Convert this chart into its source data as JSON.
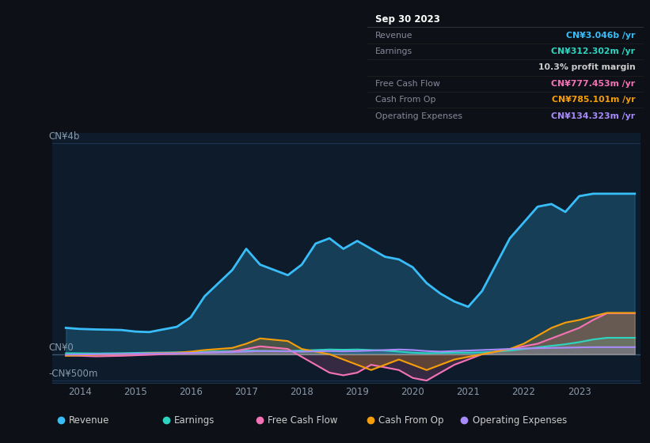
{
  "bg_color": "#0d1117",
  "plot_bg_color": "#0d1b2a",
  "tooltip_bg": "#000000",
  "ylabel_top": "CN¥4b",
  "ylabel_zero": "CN¥0",
  "ylabel_neg": "-CN¥500m",
  "ylim": [
    -550000000,
    4200000000
  ],
  "tooltip": {
    "date": "Sep 30 2023",
    "rows": [
      {
        "label": "Revenue",
        "value": "CN¥3.046b /yr",
        "value_color": "#38bdf8"
      },
      {
        "label": "Earnings",
        "value": "CN¥312.302m /yr",
        "value_color": "#2dd4bf"
      },
      {
        "label": "",
        "value": "10.3% profit margin",
        "value_color": "#cccccc"
      },
      {
        "label": "Free Cash Flow",
        "value": "CN¥777.453m /yr",
        "value_color": "#f472b6"
      },
      {
        "label": "Cash From Op",
        "value": "CN¥785.101m /yr",
        "value_color": "#f59e0b"
      },
      {
        "label": "Operating Expenses",
        "value": "CN¥134.323m /yr",
        "value_color": "#a78bfa"
      }
    ]
  },
  "legend": [
    {
      "label": "Revenue",
      "color": "#38bdf8"
    },
    {
      "label": "Earnings",
      "color": "#2dd4bf"
    },
    {
      "label": "Free Cash Flow",
      "color": "#f472b6"
    },
    {
      "label": "Cash From Op",
      "color": "#f59e0b"
    },
    {
      "label": "Operating Expenses",
      "color": "#a78bfa"
    }
  ],
  "x_years": [
    2013.75,
    2014.0,
    2014.3,
    2014.75,
    2015.0,
    2015.25,
    2015.75,
    2016.0,
    2016.25,
    2016.75,
    2017.0,
    2017.25,
    2017.75,
    2018.0,
    2018.25,
    2018.5,
    2018.75,
    2019.0,
    2019.25,
    2019.5,
    2019.75,
    2020.0,
    2020.25,
    2020.5,
    2020.75,
    2021.0,
    2021.25,
    2021.5,
    2021.75,
    2022.0,
    2022.25,
    2022.5,
    2022.75,
    2023.0,
    2023.25,
    2023.5,
    2023.75,
    2024.0
  ],
  "revenue": [
    500,
    480,
    470,
    460,
    430,
    420,
    520,
    700,
    1100,
    1600,
    2000,
    1700,
    1500,
    1700,
    2100,
    2200,
    2000,
    2150,
    2000,
    1850,
    1800,
    1650,
    1350,
    1150,
    1000,
    900,
    1200,
    1700,
    2200,
    2500,
    2800,
    2850,
    2700,
    3000,
    3046,
    3046,
    3046,
    3046
  ],
  "earnings": [
    20,
    18,
    15,
    20,
    25,
    30,
    35,
    40,
    50,
    60,
    70,
    65,
    60,
    70,
    80,
    90,
    85,
    90,
    80,
    70,
    50,
    30,
    20,
    25,
    30,
    30,
    35,
    50,
    70,
    100,
    130,
    160,
    190,
    230,
    280,
    312,
    312,
    312
  ],
  "free_cash_flow": [
    -20,
    -30,
    -40,
    -30,
    -20,
    -10,
    10,
    20,
    30,
    50,
    100,
    150,
    100,
    -50,
    -200,
    -350,
    -400,
    -350,
    -200,
    -250,
    -300,
    -450,
    -500,
    -350,
    -200,
    -100,
    0,
    50,
    100,
    150,
    200,
    300,
    400,
    500,
    650,
    777,
    777,
    777
  ],
  "cash_from_op": [
    -30,
    -20,
    -10,
    0,
    10,
    20,
    30,
    50,
    80,
    120,
    200,
    300,
    250,
    100,
    50,
    0,
    -100,
    -200,
    -300,
    -200,
    -100,
    -200,
    -300,
    -200,
    -100,
    -50,
    0,
    50,
    100,
    200,
    350,
    500,
    600,
    650,
    720,
    785,
    785,
    785
  ],
  "op_expenses": [
    -10,
    -5,
    0,
    5,
    10,
    15,
    20,
    25,
    30,
    40,
    50,
    60,
    55,
    50,
    55,
    60,
    55,
    60,
    70,
    80,
    90,
    80,
    60,
    50,
    60,
    70,
    80,
    90,
    100,
    110,
    115,
    120,
    125,
    130,
    134,
    134,
    134,
    134
  ],
  "scale": 1000000,
  "xticks": [
    2014,
    2015,
    2016,
    2017,
    2018,
    2019,
    2020,
    2021,
    2022,
    2023
  ],
  "xlim": [
    2013.5,
    2024.1
  ],
  "line_width": 1.5
}
